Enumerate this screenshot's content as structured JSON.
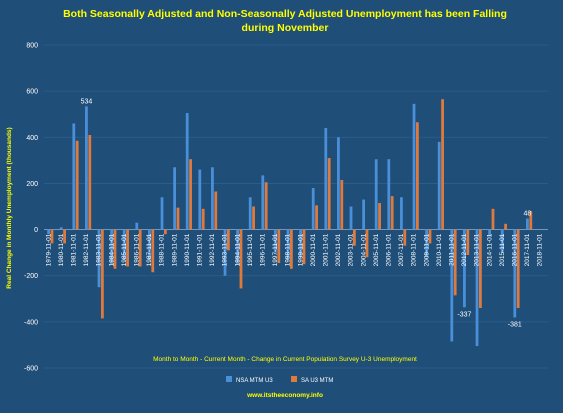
{
  "chart_data": {
    "type": "bar",
    "title_lines": [
      "Both Seasonally Adjusted and Non-Seasonally Adjusted Unemployment has been Falling",
      "during November"
    ],
    "ylabel": "Real Change in Monthly Unemployment (thousands)",
    "xlabel": "Month to Month - Current Month - Change in Current Population Survey U-3 Unemployment",
    "source": "www.itstheeconomy.info",
    "ylim": [
      -600,
      800
    ],
    "y_ticks": [
      -600,
      -400,
      -200,
      0,
      200,
      400,
      600,
      800
    ],
    "grid": true,
    "legend_position": "bottom",
    "categories": [
      "1979-11-01",
      "1980-11-01",
      "1981-11-01",
      "1982-11-01",
      "1983-11-01",
      "1984-11-01",
      "1985-11-01",
      "1986-11-01",
      "1987-11-01",
      "1988-11-01",
      "1989-11-01",
      "1990-11-01",
      "1991-11-01",
      "1992-11-01",
      "1993-11-01",
      "1994-11-01",
      "1995-11-01",
      "1996-11-01",
      "1997-11-01",
      "1998-11-01",
      "1999-11-01",
      "2000-11-01",
      "2001-11-01",
      "2002-11-01",
      "2003-11-01",
      "2004-11-01",
      "2005-11-01",
      "2006-11-01",
      "2007-11-01",
      "2008-11-01",
      "2009-11-01",
      "2010-11-01",
      "2011-11-01",
      "2012-11-01",
      "2013-11-01",
      "2014-11-01",
      "2015-11-01",
      "2016-11-01",
      "2017-11-01",
      "2018-11-01"
    ],
    "series": [
      {
        "name": "NSA MTM U3",
        "color": "#4a90d9",
        "values": [
          -20,
          10,
          460,
          534,
          -250,
          -150,
          -130,
          30,
          -130,
          140,
          270,
          505,
          260,
          270,
          -200,
          -150,
          140,
          235,
          -100,
          -130,
          -120,
          180,
          440,
          400,
          100,
          130,
          305,
          305,
          140,
          545,
          -120,
          380,
          -485,
          -337,
          -505,
          -30,
          -100,
          -381,
          48,
          0
        ]
      },
      {
        "name": "SA U3 MTM",
        "color": "#e07a3c",
        "values": [
          -60,
          -60,
          385,
          410,
          -385,
          -170,
          -160,
          -160,
          -185,
          -20,
          95,
          305,
          90,
          165,
          -90,
          -255,
          100,
          205,
          -145,
          -170,
          -150,
          105,
          310,
          215,
          -70,
          -120,
          115,
          145,
          -70,
          465,
          -60,
          565,
          -285,
          -110,
          -340,
          90,
          25,
          -340,
          80,
          0
        ]
      }
    ],
    "data_labels": [
      {
        "text": "534",
        "category": "1982-11-01",
        "series": "NSA MTM U3",
        "value": 534
      },
      {
        "text": "-337",
        "category": "2012-11-01",
        "series": "NSA MTM U3",
        "value": -337
      },
      {
        "text": "-381",
        "category": "2016-11-01",
        "series": "NSA MTM U3",
        "value": -381
      },
      {
        "text": "48",
        "category": "2017-11-01",
        "series": "NSA MTM U3",
        "value": 48
      }
    ]
  }
}
